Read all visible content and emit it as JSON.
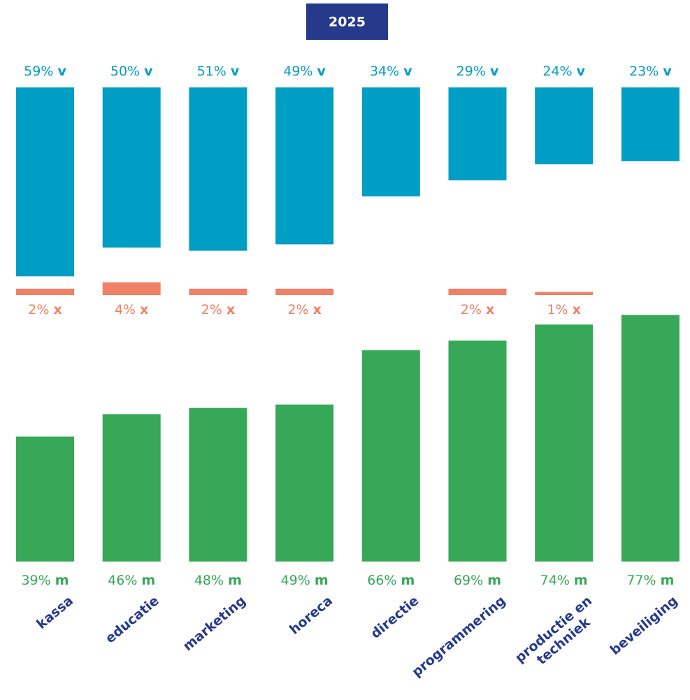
{
  "chart_data": {
    "type": "bar",
    "title": "2025",
    "categories": [
      "kassa",
      "educatie",
      "marketing",
      "horeca",
      "directie",
      "programmering",
      "productie en\ntechniek",
      "beveiliging"
    ],
    "series": [
      {
        "name": "v",
        "color": "#009dc4",
        "values": [
          59,
          50,
          51,
          49,
          34,
          29,
          24,
          23
        ],
        "value_labels": [
          "59%",
          "50%",
          "51%",
          "49%",
          "34%",
          "29%",
          "24%",
          "23%"
        ]
      },
      {
        "name": "x",
        "color": "#f08066",
        "values": [
          2,
          4,
          2,
          2,
          null,
          2,
          1,
          null
        ],
        "value_labels": [
          "2%",
          "4%",
          "2%",
          "2%",
          null,
          "2%",
          "1%",
          null
        ]
      },
      {
        "name": "m",
        "color": "#36a857",
        "values": [
          39,
          46,
          48,
          49,
          66,
          69,
          74,
          77
        ],
        "value_labels": [
          "39%",
          "46%",
          "48%",
          "49%",
          "66%",
          "69%",
          "74%",
          "77%"
        ]
      }
    ]
  }
}
